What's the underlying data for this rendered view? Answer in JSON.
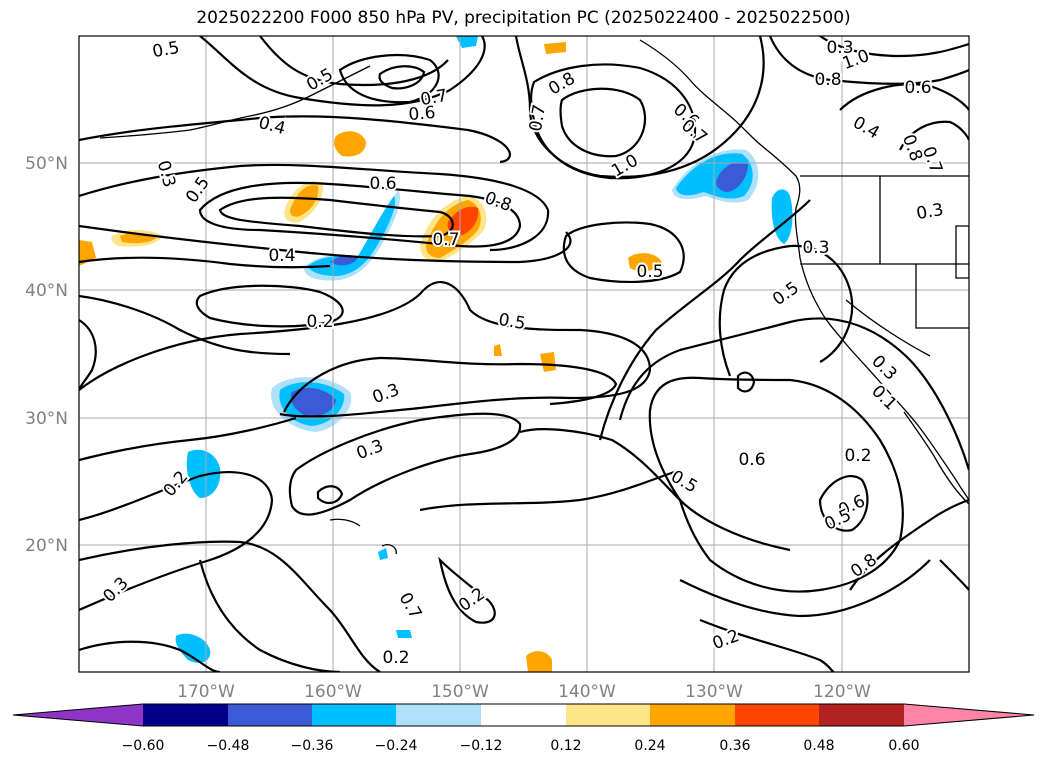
{
  "title": "2025022200 F000 850 hPa PV, precipitation PC (2025022400 - 2025022500)",
  "lat_ticks": [
    "50°N",
    "40°N",
    "30°N",
    "20°N"
  ],
  "lon_ticks": [
    "170°W",
    "160°W",
    "150°W",
    "140°W",
    "130°W",
    "120°W"
  ],
  "contour_labels": [
    "0.5",
    "0.5",
    "0.7",
    "0.6",
    "0.4",
    "0.3",
    "0.5",
    "0.6",
    "0.8",
    "0.4",
    "0.7",
    "0.2",
    "0.5",
    "0.5",
    "0.3",
    "0.3",
    "0.2",
    "0.3",
    "0.8",
    "0.7",
    "1.0",
    "0.6",
    "0.7",
    "0.5",
    "0.6",
    "0.5",
    "0.3",
    "0.1",
    "0.6",
    "0.5",
    "0.8",
    "0.7",
    "0.2",
    "0.2",
    "0.2",
    "0.3",
    "1.0",
    "0.8",
    "0.6",
    "0.4",
    "0.3",
    "0.8",
    "0.7",
    "0.3",
    "0.2"
  ],
  "colorbar": {
    "ticks": [
      "−0.60",
      "−0.48",
      "−0.36",
      "−0.24",
      "−0.12",
      "0.12",
      "0.24",
      "0.36",
      "0.48",
      "0.60"
    ],
    "colors": [
      "#8e35c8",
      "#00008b",
      "#3b5bd6",
      "#00bfff",
      "#aee0fa",
      "#ffffff",
      "#ffe58a",
      "#ffa500",
      "#ff4500",
      "#b22222",
      "#ff85a6"
    ]
  }
}
